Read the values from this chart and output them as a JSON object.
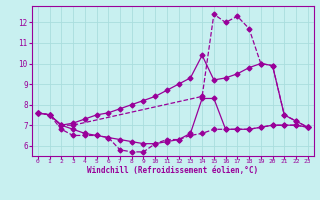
{
  "xlabel": "Windchill (Refroidissement éolien,°C)",
  "bg_color": "#c8f0f0",
  "line_color": "#990099",
  "grid_color": "#aadddd",
  "xlim": [
    -0.5,
    23.5
  ],
  "ylim": [
    5.5,
    12.8
  ],
  "xticks": [
    0,
    1,
    2,
    3,
    4,
    5,
    6,
    7,
    8,
    9,
    10,
    11,
    12,
    13,
    14,
    15,
    16,
    17,
    18,
    19,
    20,
    21,
    22,
    23
  ],
  "yticks": [
    6,
    7,
    8,
    9,
    10,
    11,
    12
  ],
  "line1_x": [
    0,
    1,
    2,
    3,
    4,
    5,
    6,
    7,
    8,
    9,
    10,
    11,
    12,
    13,
    14,
    15,
    16,
    17,
    18,
    19,
    20,
    21,
    22,
    23
  ],
  "line1_y": [
    7.6,
    7.5,
    6.8,
    6.5,
    6.5,
    6.5,
    6.4,
    5.8,
    5.7,
    5.7,
    6.1,
    6.3,
    6.3,
    6.5,
    6.6,
    6.8,
    6.8,
    6.8,
    6.8,
    6.9,
    7.0,
    7.0,
    7.0,
    6.9
  ],
  "line2_x": [
    0,
    1,
    2,
    3,
    4,
    5,
    6,
    7,
    8,
    9,
    10,
    11,
    12,
    13,
    14,
    15,
    16,
    17,
    18,
    19,
    20,
    21,
    22,
    23
  ],
  "line2_y": [
    7.6,
    7.5,
    7.0,
    7.1,
    7.3,
    7.5,
    7.6,
    7.8,
    8.0,
    8.2,
    8.4,
    8.7,
    9.0,
    9.3,
    10.4,
    9.2,
    9.3,
    9.5,
    9.8,
    10.0,
    9.9,
    7.5,
    7.2,
    6.9
  ],
  "line3_x": [
    0,
    1,
    2,
    3,
    14,
    15,
    16,
    17,
    18,
    19,
    20,
    21,
    22,
    23
  ],
  "line3_y": [
    7.6,
    7.5,
    7.0,
    7.0,
    8.4,
    12.4,
    12.0,
    12.3,
    11.7,
    10.0,
    9.9,
    7.5,
    7.2,
    6.9
  ],
  "line4_x": [
    0,
    1,
    2,
    3,
    4,
    5,
    6,
    7,
    8,
    9,
    10,
    11,
    12,
    13,
    14,
    15,
    16,
    17,
    18,
    19,
    20,
    21,
    22,
    23
  ],
  "line4_y": [
    7.6,
    7.5,
    7.0,
    6.8,
    6.6,
    6.5,
    6.4,
    6.3,
    6.2,
    6.1,
    6.1,
    6.2,
    6.3,
    6.6,
    8.3,
    8.3,
    6.8,
    6.8,
    6.8,
    6.9,
    7.0,
    7.0,
    7.0,
    6.9
  ]
}
